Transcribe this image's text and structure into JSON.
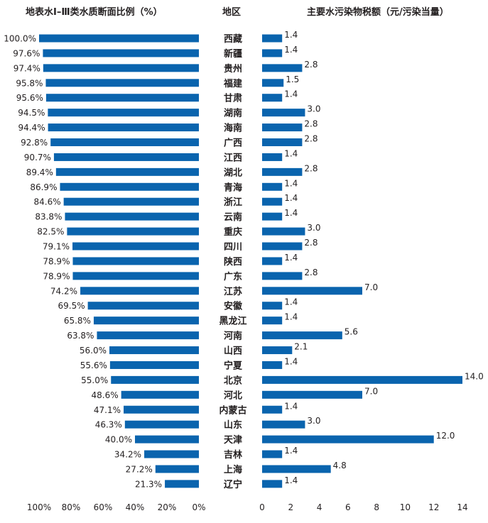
{
  "colors": {
    "bar": "#0a64ae",
    "text": "#231f20"
  },
  "chart_data": {
    "type": "bar",
    "layout": "butterfly",
    "categories_title": "地区",
    "categories": [
      "西藏",
      "新疆",
      "贵州",
      "福建",
      "甘肃",
      "湖南",
      "海南",
      "广西",
      "江西",
      "湖北",
      "青海",
      "浙江",
      "云南",
      "重庆",
      "四川",
      "陕西",
      "广东",
      "江苏",
      "安徽",
      "黑龙江",
      "河南",
      "山西",
      "宁夏",
      "北京",
      "河北",
      "内蒙古",
      "山东",
      "天津",
      "吉林",
      "上海",
      "辽宁"
    ],
    "left": {
      "title": "地表水Ⅰ–Ⅲ类水质断面比例（%）",
      "values": [
        100.0,
        97.6,
        97.4,
        95.8,
        95.6,
        94.5,
        94.4,
        92.8,
        90.7,
        89.4,
        86.9,
        84.6,
        83.8,
        82.5,
        79.1,
        78.9,
        78.9,
        74.2,
        69.5,
        65.8,
        63.8,
        56.0,
        55.6,
        55.0,
        48.6,
        47.1,
        46.3,
        40.0,
        34.2,
        27.2,
        21.3
      ],
      "labels": [
        "100.0%",
        "97.6%",
        "97.4%",
        "95.8%",
        "95.6%",
        "94.5%",
        "94.4%",
        "92.8%",
        "90.7%",
        "89.4%",
        "86.9%",
        "84.6%",
        "83.8%",
        "82.5%",
        "79.1%",
        "78.9%",
        "78.9%",
        "74.2%",
        "69.5%",
        "65.8%",
        "63.8%",
        "56.0%",
        "55.6%",
        "55.0%",
        "48.6%",
        "47.1%",
        "46.3%",
        "40.0%",
        "34.2%",
        "27.2%",
        "21.3%"
      ],
      "xlim": [
        100,
        0
      ],
      "ticks": [
        "100%",
        "80%",
        "60%",
        "40%",
        "20%",
        "0%"
      ]
    },
    "right": {
      "title": "主要水污染物税额（元/污染当量）",
      "values": [
        1.4,
        1.4,
        2.8,
        1.5,
        1.4,
        3.0,
        2.8,
        2.8,
        1.4,
        2.8,
        1.4,
        1.4,
        1.4,
        3.0,
        2.8,
        1.4,
        2.8,
        7.0,
        1.4,
        1.4,
        5.6,
        2.1,
        1.4,
        14.0,
        7.0,
        1.4,
        3.0,
        12.0,
        1.4,
        4.8,
        1.4
      ],
      "labels": [
        "1.4",
        "1.4",
        "2.8",
        "1.5",
        "1.4",
        "3.0",
        "2.8",
        "2.8",
        "1.4",
        "2.8",
        "1.4",
        "1.4",
        "1.4",
        "3.0",
        "2.8",
        "1.4",
        "2.8",
        "7.0",
        "1.4",
        "1.4",
        "5.6",
        "2.1",
        "1.4",
        "14.0",
        "7.0",
        "1.4",
        "3.0",
        "12.0",
        "1.4",
        "4.8",
        "1.4"
      ],
      "xlim": [
        0,
        14
      ],
      "ticks": [
        "0",
        "2",
        "4",
        "6",
        "8",
        "10",
        "12",
        "14"
      ]
    }
  }
}
